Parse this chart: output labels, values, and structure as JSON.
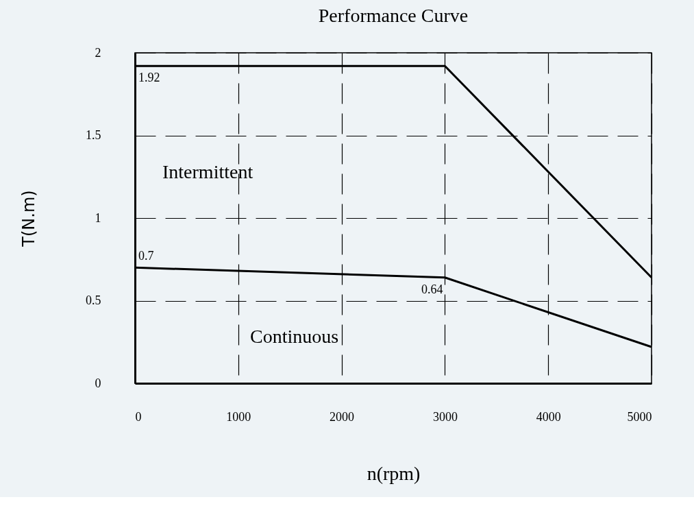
{
  "chart_data": {
    "type": "line",
    "title": "Performance Curve",
    "xlabel": "n(rpm)",
    "ylabel": "T(N.m)",
    "xlim": [
      0,
      5000
    ],
    "xticks": [
      0,
      1000,
      2000,
      3000,
      4000,
      5000
    ],
    "ylim": [
      0,
      2
    ],
    "yticks": [
      0,
      0.5,
      1,
      1.5,
      2
    ],
    "grid": true,
    "line_style": "solid",
    "marker": "none",
    "series": [
      {
        "color": "#000000",
        "x": [
          0,
          3000,
          5000
        ],
        "values": [
          1.92,
          1.92,
          0.64
        ],
        "value_labels": [
          "1.92",
          null,
          null
        ]
      },
      {
        "color": "#000000",
        "x": [
          0,
          3000,
          5000
        ],
        "values": [
          0.7,
          0.64,
          0.22
        ],
        "value_labels": [
          "0.7",
          "0.64",
          null
        ]
      }
    ],
    "annotations": [
      "Intermittent",
      "Continuous"
    ]
  }
}
